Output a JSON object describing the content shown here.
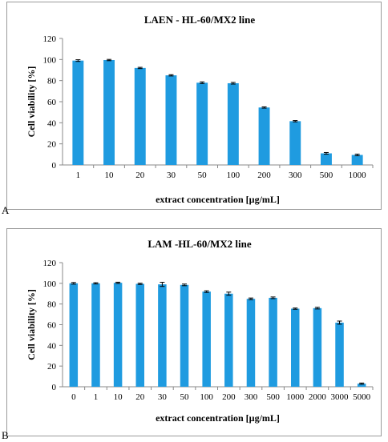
{
  "panel_letters": [
    "A",
    "B"
  ],
  "colors": {
    "bar": "#1f9be0",
    "axis": "#888888",
    "error": "#000000"
  },
  "chart_data": [
    {
      "type": "bar",
      "title": "LAEN - HL-60/MX2 line",
      "xlabel": "extract concentration [µg/mL]",
      "ylabel": "Cell viability [%]",
      "ylim": [
        0,
        120
      ],
      "yticks": [
        0,
        20,
        40,
        60,
        80,
        100,
        120
      ],
      "grid": false,
      "categories": [
        "1",
        "10",
        "20",
        "30",
        "50",
        "100",
        "200",
        "300",
        "500",
        "1000"
      ],
      "values": [
        99,
        99.5,
        92,
        85,
        78,
        77.5,
        54.5,
        41.5,
        11,
        9.5
      ],
      "errors": [
        0.8,
        0.6,
        0.6,
        0.6,
        0.8,
        0.8,
        0.6,
        0.6,
        0.8,
        0.8
      ]
    },
    {
      "type": "bar",
      "title": "LAM -HL-60/MX2 line",
      "xlabel": "extract concentration [µg/mL]",
      "ylabel": "Cell viability [%]",
      "ylim": [
        0,
        120
      ],
      "yticks": [
        0,
        20,
        40,
        60,
        80,
        100,
        120
      ],
      "grid": false,
      "categories": [
        "0",
        "1",
        "10",
        "20",
        "30",
        "50",
        "100",
        "200",
        "300",
        "500",
        "1000",
        "2000",
        "3000",
        "5000"
      ],
      "values": [
        100,
        100,
        100.5,
        99.5,
        99,
        98.5,
        92,
        90,
        85,
        86,
        75.5,
        76,
        62,
        3
      ],
      "errors": [
        0.8,
        0.6,
        0.6,
        0.6,
        2.0,
        0.8,
        0.8,
        1.5,
        0.8,
        0.8,
        0.6,
        0.8,
        1.5,
        0.6
      ]
    }
  ]
}
